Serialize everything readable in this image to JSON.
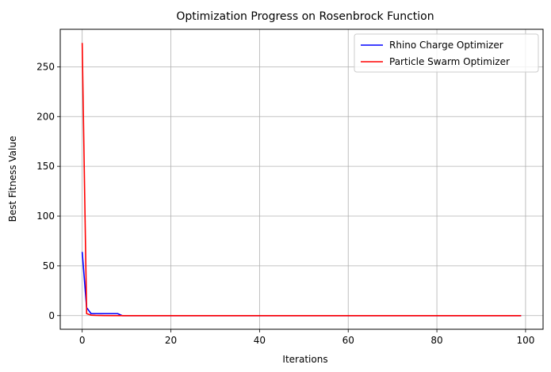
{
  "chart_data": {
    "type": "line",
    "title": "Optimization Progress on Rosenbrock Function",
    "xlabel": "Iterations",
    "ylabel": "Best Fitness Value",
    "xlim": [
      -4.95,
      103.95
    ],
    "ylim": [
      -13.7,
      287.7
    ],
    "xticks": [
      0,
      20,
      40,
      60,
      80,
      100
    ],
    "yticks": [
      0,
      50,
      100,
      150,
      200,
      250
    ],
    "grid": true,
    "legend_position": "upper right",
    "series": [
      {
        "name": "Rhino Charge Optimizer",
        "color": "#0000ff",
        "x": [
          0,
          1,
          2,
          3,
          4,
          5,
          6,
          7,
          8,
          9,
          10,
          99
        ],
        "y": [
          64,
          8,
          2,
          2,
          2,
          2,
          2,
          2,
          2,
          0,
          0,
          0
        ]
      },
      {
        "name": "Particle Swarm Optimizer",
        "color": "#ff0000",
        "x": [
          0,
          1,
          2,
          3,
          4,
          5,
          10,
          99
        ],
        "y": [
          274,
          2,
          0.5,
          0.3,
          0.2,
          0.1,
          0,
          0
        ]
      }
    ]
  }
}
